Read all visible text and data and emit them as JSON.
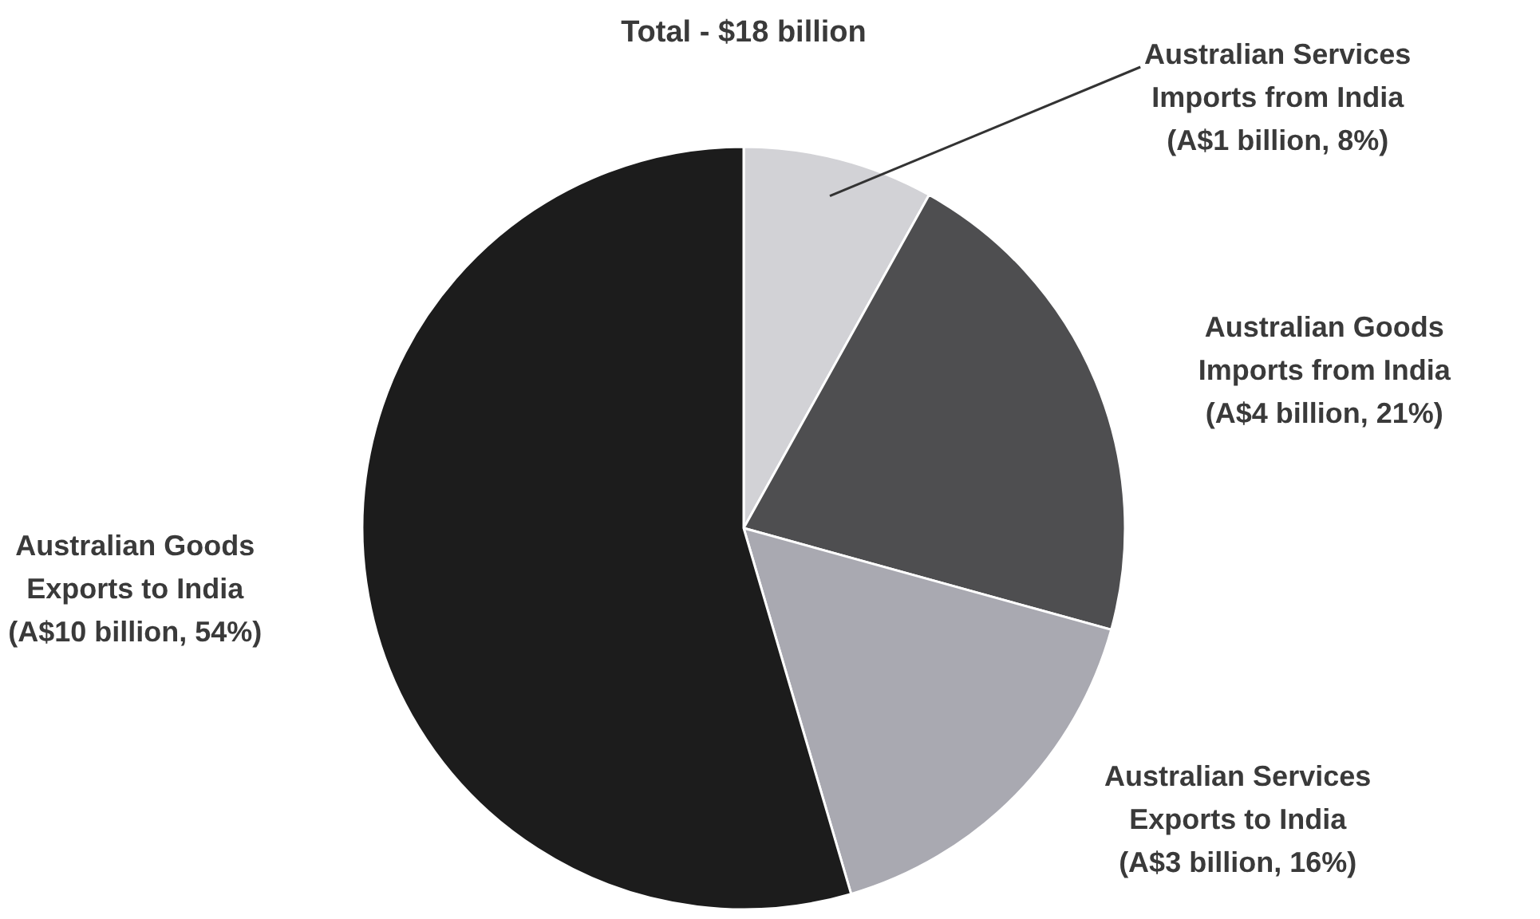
{
  "chart_data": {
    "type": "pie",
    "title": "Total - $18 billion",
    "categories": [
      "Australian Services Imports from India",
      "Australian Goods Imports from India",
      "Australian Services Exports to India",
      "Australian Goods Exports to India"
    ],
    "values": [
      8,
      21,
      16,
      54
    ],
    "colors": [
      "#d2d2d6",
      "#4e4e50",
      "#a9a9b1",
      "#1c1c1c"
    ],
    "value_labels": [
      "(A$1 billion, 8%)",
      "(A$4 billion, 21%)",
      "(A$3 billion, 16%)",
      "(A$10 billion, 54%)"
    ]
  }
}
